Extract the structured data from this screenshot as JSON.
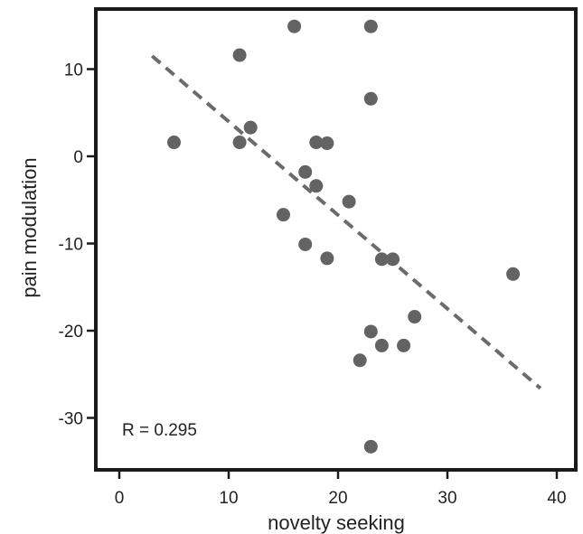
{
  "chart_data": {
    "type": "scatter",
    "title": "",
    "xlabel": "novelty seeking",
    "ylabel": "pain modulation",
    "xlim": [
      -2,
      42
    ],
    "ylim": [
      -36,
      17
    ],
    "x_ticks": [
      0,
      10,
      20,
      30,
      40
    ],
    "x_tick_labels": [
      "0",
      "10",
      "20",
      "30",
      "40"
    ],
    "y_ticks": [
      10,
      0,
      -10,
      -20,
      -30
    ],
    "y_tick_labels": [
      "10",
      "0",
      "-10",
      "-20",
      "-30"
    ],
    "grid": false,
    "legend": "none",
    "annotation": "R  = 0.295",
    "colors": {
      "points": "#636363",
      "trend": "#6b6b6b",
      "frame": "#1a1a1a"
    },
    "points": [
      {
        "x": 5,
        "y": 1.6
      },
      {
        "x": 11,
        "y": 11.6
      },
      {
        "x": 11,
        "y": 1.6
      },
      {
        "x": 12,
        "y": 3.3
      },
      {
        "x": 15,
        "y": -6.7
      },
      {
        "x": 16,
        "y": 14.9
      },
      {
        "x": 17,
        "y": -1.8
      },
      {
        "x": 17,
        "y": -10.1
      },
      {
        "x": 18,
        "y": 1.6
      },
      {
        "x": 18,
        "y": -3.4
      },
      {
        "x": 19,
        "y": 1.5
      },
      {
        "x": 19,
        "y": -11.7
      },
      {
        "x": 21,
        "y": -5.2
      },
      {
        "x": 22,
        "y": -23.4
      },
      {
        "x": 23,
        "y": 14.9
      },
      {
        "x": 23,
        "y": 6.6
      },
      {
        "x": 23,
        "y": -20.1
      },
      {
        "x": 23,
        "y": -33.3
      },
      {
        "x": 24,
        "y": -11.8
      },
      {
        "x": 24,
        "y": -21.7
      },
      {
        "x": 25,
        "y": -11.8
      },
      {
        "x": 26,
        "y": -21.7
      },
      {
        "x": 27,
        "y": -18.4
      },
      {
        "x": 36,
        "y": -13.5
      }
    ],
    "trendline": {
      "x": [
        3,
        38.5
      ],
      "y": [
        11.5,
        -26.6
      ]
    }
  }
}
